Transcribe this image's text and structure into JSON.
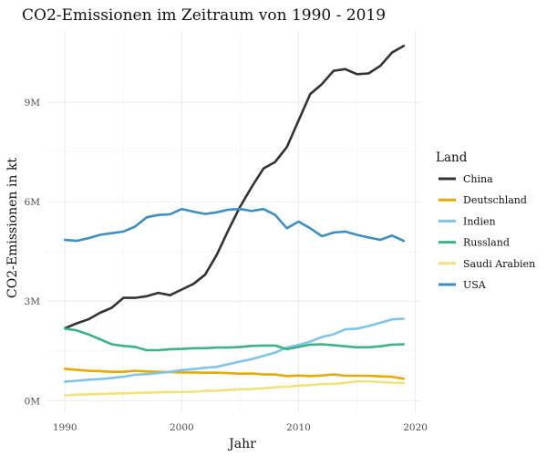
{
  "chart_data": {
    "type": "line",
    "title": "CO2-Emissionen im Zeitraum von 1990 - 2019",
    "xlabel": "Jahr",
    "ylabel": "CO2-Emissionen in kt",
    "xlim": [
      1990,
      2020
    ],
    "ylim": [
      0,
      10800000
    ],
    "x_ticks": [
      1990,
      2000,
      2010,
      2020
    ],
    "y_ticks": [
      0,
      3000000,
      6000000,
      9000000
    ],
    "y_tick_labels": [
      "0M",
      "3M",
      "6M",
      "9M"
    ],
    "grid": true,
    "legend_title": "Land",
    "legend_position": "right",
    "x": [
      1990,
      1991,
      1992,
      1993,
      1994,
      1995,
      1996,
      1997,
      1998,
      1999,
      2000,
      2001,
      2002,
      2003,
      2004,
      2005,
      2006,
      2007,
      2008,
      2009,
      2010,
      2011,
      2012,
      2013,
      2014,
      2015,
      2016,
      2017,
      2018,
      2019
    ],
    "series": [
      {
        "name": "China",
        "color": "#333333",
        "values": [
          2180000,
          2330000,
          2450000,
          2650000,
          2800000,
          3100000,
          3100000,
          3150000,
          3250000,
          3180000,
          3350000,
          3520000,
          3800000,
          4400000,
          5150000,
          5850000,
          6450000,
          7000000,
          7200000,
          7650000,
          8450000,
          9250000,
          9550000,
          9950000,
          10000000,
          9850000,
          9870000,
          10100000,
          10500000,
          10700000
        ]
      },
      {
        "name": "Deutschland",
        "color": "#e6ab02",
        "values": [
          960000,
          930000,
          900000,
          890000,
          870000,
          870000,
          900000,
          880000,
          870000,
          860000,
          850000,
          850000,
          840000,
          840000,
          830000,
          810000,
          820000,
          790000,
          790000,
          740000,
          760000,
          740000,
          760000,
          790000,
          750000,
          750000,
          750000,
          730000,
          720000,
          660000
        ]
      },
      {
        "name": "Indien",
        "color": "#80c4e8",
        "values": [
          570000,
          600000,
          630000,
          650000,
          680000,
          720000,
          780000,
          800000,
          830000,
          870000,
          920000,
          950000,
          990000,
          1020000,
          1100000,
          1180000,
          1250000,
          1350000,
          1450000,
          1600000,
          1680000,
          1780000,
          1920000,
          2000000,
          2150000,
          2170000,
          2250000,
          2350000,
          2450000,
          2470000
        ]
      },
      {
        "name": "Russland",
        "color": "#3cb28a",
        "values": [
          2170000,
          2120000,
          2000000,
          1850000,
          1700000,
          1650000,
          1620000,
          1520000,
          1520000,
          1550000,
          1560000,
          1580000,
          1580000,
          1600000,
          1600000,
          1620000,
          1650000,
          1660000,
          1660000,
          1550000,
          1620000,
          1690000,
          1700000,
          1670000,
          1640000,
          1610000,
          1610000,
          1640000,
          1690000,
          1700000
        ]
      },
      {
        "name": "Saudi Arabien",
        "color": "#f3e27a",
        "values": [
          160000,
          180000,
          190000,
          200000,
          210000,
          220000,
          230000,
          240000,
          250000,
          260000,
          260000,
          270000,
          290000,
          300000,
          320000,
          340000,
          350000,
          370000,
          400000,
          420000,
          450000,
          470000,
          500000,
          500000,
          540000,
          580000,
          580000,
          560000,
          540000,
          530000
        ]
      },
      {
        "name": "USA",
        "color": "#3d8fbf",
        "values": [
          4850000,
          4820000,
          4900000,
          5000000,
          5050000,
          5100000,
          5250000,
          5530000,
          5600000,
          5620000,
          5780000,
          5700000,
          5630000,
          5680000,
          5760000,
          5780000,
          5720000,
          5780000,
          5600000,
          5200000,
          5400000,
          5200000,
          4960000,
          5070000,
          5100000,
          5000000,
          4920000,
          4850000,
          4980000,
          4820000
        ]
      }
    ]
  }
}
